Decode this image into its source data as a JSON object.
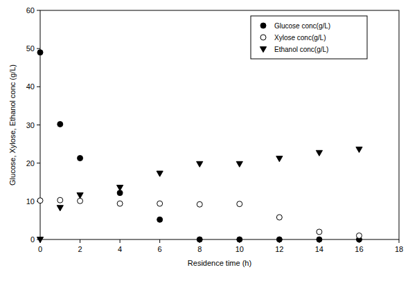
{
  "chart_data": {
    "type": "scatter",
    "x_label": "Residence time (h)",
    "y_label": "Glucose, Xylose, Ethanol conc (g/L)",
    "x": [
      0,
      1,
      2,
      4,
      6,
      8,
      10,
      12,
      14,
      16
    ],
    "series": [
      {
        "name": "Glucose conc(g/L)",
        "color": "#000000",
        "marker": "circle",
        "values": [
          49,
          30.2,
          21.3,
          12.2,
          5.2,
          0,
          0,
          0,
          0,
          0
        ]
      },
      {
        "name": "Xylose conc(g/L)",
        "color": "#000000",
        "marker": "circle-open",
        "values": [
          10.2,
          10.3,
          10.1,
          9.4,
          9.4,
          9.2,
          9.3,
          5.8,
          2.0,
          1.0
        ]
      },
      {
        "name": "Ethanol conc(g/L)",
        "color": "#000000",
        "marker": "triangle-down",
        "values": [
          0,
          8.3,
          11.6,
          13.6,
          17.3,
          19.8,
          19.8,
          21.2,
          22.7,
          23.6
        ]
      }
    ],
    "xlim": [
      0,
      18
    ],
    "xticks": [
      0,
      2,
      4,
      6,
      8,
      10,
      12,
      14,
      16,
      18
    ],
    "ylim": [
      0,
      60
    ],
    "yticks": [
      0,
      10,
      20,
      30,
      40,
      50,
      60
    ],
    "legend": "top-right",
    "grid": false
  }
}
